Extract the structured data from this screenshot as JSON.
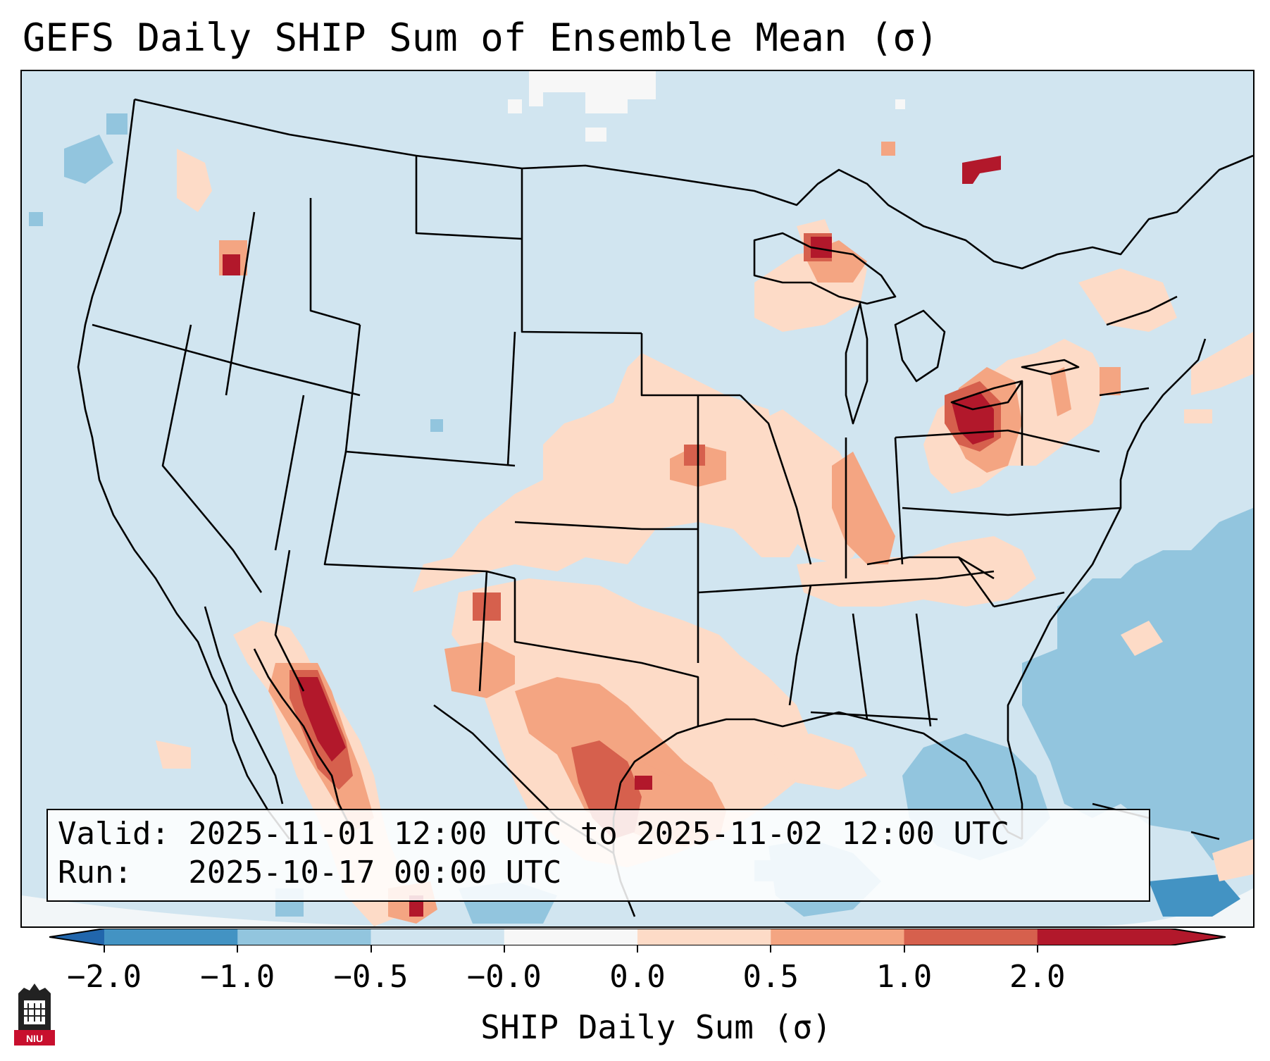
{
  "title": "GEFS Daily SHIP Sum of Ensemble Mean (σ)",
  "info": {
    "valid_label": "Valid: 2025-11-01 12:00 UTC to 2025-11-02 12:00 UTC",
    "run_label": "Run:   2025-10-17 00:00 UTC"
  },
  "colorbar": {
    "label": "SHIP Daily Sum (σ)",
    "ticks": [
      "−2.0",
      "−1.0",
      "−0.5",
      "−0.0",
      "0.0",
      "0.5",
      "1.0",
      "2.0"
    ],
    "colors": [
      "#4393c3",
      "#92c5de",
      "#d1e5f0",
      "#f7f7f7",
      "#fddbc7",
      "#f4a582",
      "#d6604d",
      "#b2182b"
    ],
    "extend_low_color": "#2166ac",
    "extend_high_color": "#b2182b"
  },
  "map": {
    "background_color": "#d1e5f0",
    "region": "Contiguous United States and northern Mexico",
    "field": "SHIP daily sum anomaly (σ)"
  },
  "logo": {
    "text": "NIU",
    "color": "#c8102e"
  }
}
